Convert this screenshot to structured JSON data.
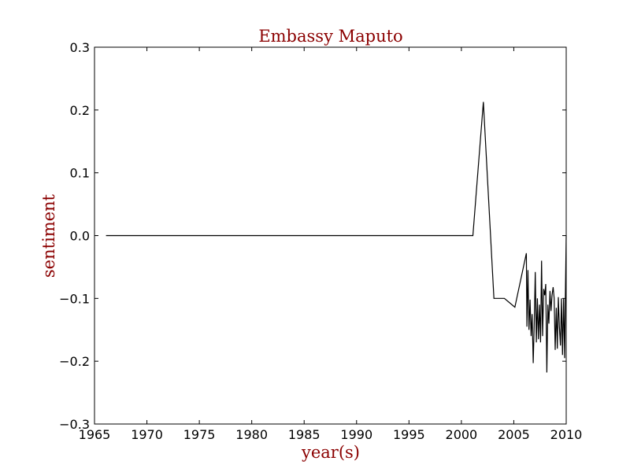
{
  "chart_data": {
    "type": "line",
    "title": "Embassy Maputo",
    "xlabel": "year(s)",
    "ylabel": "sentiment",
    "xlim": [
      1965,
      2010
    ],
    "ylim": [
      -0.3,
      0.3
    ],
    "xticks": [
      1965,
      1970,
      1975,
      1980,
      1985,
      1990,
      1995,
      2000,
      2005,
      2010
    ],
    "xtick_labels": [
      "1965",
      "1970",
      "1975",
      "1980",
      "1985",
      "1990",
      "1995",
      "2000",
      "2005",
      "2010"
    ],
    "yticks": [
      -0.3,
      -0.2,
      -0.1,
      0.0,
      0.1,
      0.2,
      0.3
    ],
    "ytick_labels": [
      "−0.3",
      "−0.2",
      "−0.1",
      "0.0",
      "0.1",
      "0.2",
      "0.3"
    ],
    "grid": false,
    "line_color": "#000000",
    "title_color": "#8b0000",
    "series": [
      {
        "x": [
          1966.1,
          2001.1,
          2002.1,
          2003.1,
          2004.1,
          2005.1,
          2006.2,
          2006.25,
          2006.35,
          2006.45,
          2006.55,
          2006.65,
          2006.75,
          2006.85,
          2006.95,
          2007.05,
          2007.15,
          2007.25,
          2007.35,
          2007.45,
          2007.55,
          2007.65,
          2007.75,
          2007.85,
          2007.95,
          2008.05,
          2008.15,
          2008.25,
          2008.35,
          2008.45,
          2008.55,
          2008.65,
          2008.75,
          2008.85,
          2008.95,
          2009.05,
          2009.15,
          2009.25,
          2009.35,
          2009.45,
          2009.55,
          2009.65,
          2009.75,
          2009.85,
          2009.92,
          2010.0
        ],
        "y": [
          0.0,
          0.0,
          0.213,
          -0.1,
          -0.1,
          -0.114,
          -0.028,
          -0.145,
          -0.055,
          -0.15,
          -0.102,
          -0.16,
          -0.125,
          -0.203,
          -0.14,
          -0.058,
          -0.17,
          -0.1,
          -0.165,
          -0.11,
          -0.17,
          -0.04,
          -0.16,
          -0.085,
          -0.095,
          -0.077,
          -0.218,
          -0.11,
          -0.14,
          -0.088,
          -0.12,
          -0.095,
          -0.082,
          -0.1,
          -0.182,
          -0.115,
          -0.18,
          -0.098,
          -0.145,
          -0.175,
          -0.1,
          -0.19,
          -0.1,
          -0.195,
          -0.1,
          0.0
        ]
      }
    ]
  }
}
